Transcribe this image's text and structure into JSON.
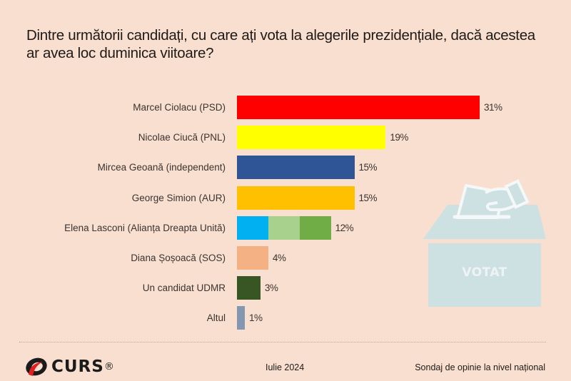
{
  "chart_data": {
    "type": "bar",
    "orientation": "horizontal",
    "title": "Dintre următorii candidați, cu care ați vota la alegerile prezidențiale, dacă acestea ar avea loc duminica viitoare?",
    "xlabel": "",
    "ylabel": "",
    "xlim": [
      0,
      31
    ],
    "grid": false,
    "legend": "none",
    "unit": "%",
    "categories": [
      "Marcel Ciolacu (PSD)",
      "Nicolae Ciucă (PNL)",
      "Mircea Geoană (independent)",
      "George Simion (AUR)",
      "Elena Lasconi (Alianța Dreapta Unită)",
      "Diana Șoșoacă (SOS)",
      "Un candidat UDMR",
      "Altul"
    ],
    "values": [
      31,
      19,
      15,
      15,
      12,
      4,
      3,
      1
    ],
    "data_labels": [
      "31%",
      "19%",
      "15%",
      "15%",
      "12%",
      "4%",
      "3%",
      "1%"
    ],
    "colors": [
      [
        "#ff0000"
      ],
      [
        "#ffff00"
      ],
      [
        "#2f5597"
      ],
      [
        "#ffc000"
      ],
      [
        "#00b0f0",
        "#a9d18e",
        "#70ad47"
      ],
      [
        "#f4b183"
      ],
      [
        "#375623"
      ],
      [
        "#8497b0"
      ]
    ]
  },
  "illustration": {
    "icon": "ballot-box-icon",
    "text": "VOTAT",
    "color": "#cde0e2"
  },
  "footer": {
    "logo_text": "CURS",
    "logo_mark": "®",
    "date": "Iulie 2024",
    "source": "Sondaj de opinie la nivel național"
  }
}
